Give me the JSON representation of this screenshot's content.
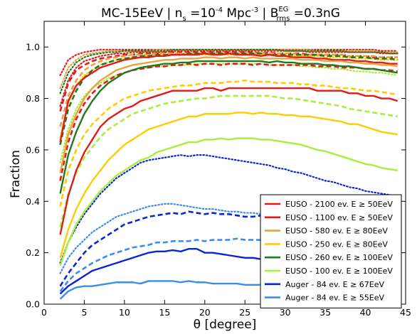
{
  "chart_data": {
    "type": "line",
    "title": {
      "main": "MC-15EeV | n",
      "sub_s": "s",
      "eq1": " =10",
      "sup_n": "-4",
      "unit": " Mpc",
      "sup_unit": "-3",
      "sep": "  | B",
      "sup_eg": "EG",
      "sub_rms": "rms",
      "val": " =0.3nG"
    },
    "xlabel": "θ [degree]",
    "ylabel": "Fraction",
    "xlim": [
      0,
      45
    ],
    "ylim": [
      0.0,
      1.1
    ],
    "x_ticks": [
      "0",
      "5",
      "10",
      "15",
      "20",
      "25",
      "30",
      "35",
      "40",
      "45"
    ],
    "y_ticks": [
      "0.0",
      "0.2",
      "0.4",
      "0.6",
      "0.8",
      "1.0"
    ],
    "grid": false,
    "legend_position": "lower-right",
    "x": [
      2,
      3,
      4,
      5,
      6,
      7,
      8,
      9,
      10,
      11,
      12,
      13,
      14,
      15,
      16,
      17,
      18,
      19,
      20,
      21,
      22,
      23,
      24,
      25,
      26,
      27,
      28,
      29,
      30,
      31,
      32,
      33,
      34,
      35,
      36,
      37,
      38,
      39,
      40,
      41,
      42,
      43,
      44
    ],
    "series": [
      {
        "name": "EUSO - 2100 ev. E  ≥ 50EeV",
        "color": "#e31a1c",
        "solid": [
          0.63,
          0.79,
          0.85,
          0.88,
          0.9,
          0.92,
          0.93,
          0.94,
          0.95,
          0.955,
          0.96,
          0.96,
          0.965,
          0.965,
          0.97,
          0.97,
          0.97,
          0.97,
          0.975,
          0.97,
          0.97,
          0.975,
          0.97,
          0.97,
          0.97,
          0.965,
          0.97,
          0.965,
          0.965,
          0.96,
          0.96,
          0.96,
          0.955,
          0.955,
          0.95,
          0.95,
          0.95,
          0.945,
          0.945,
          0.94,
          0.94,
          0.935,
          0.935
        ],
        "dashed": [
          0.75,
          0.86,
          0.91,
          0.93,
          0.945,
          0.955,
          0.96,
          0.965,
          0.97,
          0.97,
          0.975,
          0.975,
          0.975,
          0.98,
          0.98,
          0.98,
          0.98,
          0.98,
          0.98,
          0.98,
          0.98,
          0.98,
          0.98,
          0.98,
          0.98,
          0.975,
          0.98,
          0.975,
          0.975,
          0.975,
          0.975,
          0.97,
          0.97,
          0.97,
          0.97,
          0.97,
          0.965,
          0.965,
          0.965,
          0.96,
          0.96,
          0.96,
          0.96
        ],
        "dotted": [
          0.89,
          0.95,
          0.97,
          0.98,
          0.985,
          0.99,
          0.99,
          0.99,
          0.99,
          0.99,
          0.99,
          0.99,
          0.99,
          0.99,
          0.99,
          0.99,
          0.99,
          0.99,
          0.99,
          0.99,
          0.99,
          0.99,
          0.99,
          0.99,
          0.99,
          0.99,
          0.99,
          0.99,
          0.99,
          0.99,
          0.99,
          0.99,
          0.99,
          0.99,
          0.99,
          0.99,
          0.99,
          0.99,
          0.99,
          0.99,
          0.985,
          0.985,
          0.985
        ]
      },
      {
        "name": "EUSO - 1100 ev. E  ≥ 50EeV",
        "color": "#e31a1c",
        "solid": [
          0.27,
          0.42,
          0.52,
          0.59,
          0.64,
          0.69,
          0.72,
          0.74,
          0.76,
          0.77,
          0.79,
          0.8,
          0.81,
          0.82,
          0.83,
          0.83,
          0.83,
          0.83,
          0.84,
          0.84,
          0.83,
          0.84,
          0.84,
          0.84,
          0.84,
          0.84,
          0.84,
          0.84,
          0.84,
          0.84,
          0.84,
          0.84,
          0.83,
          0.83,
          0.83,
          0.83,
          0.82,
          0.82,
          0.81,
          0.81,
          0.8,
          0.8,
          0.79
        ],
        "dashed": [
          0.48,
          0.63,
          0.72,
          0.78,
          0.82,
          0.85,
          0.87,
          0.89,
          0.9,
          0.91,
          0.915,
          0.92,
          0.925,
          0.925,
          0.93,
          0.93,
          0.935,
          0.93,
          0.935,
          0.935,
          0.93,
          0.935,
          0.935,
          0.935,
          0.93,
          0.935,
          0.93,
          0.93,
          0.93,
          0.93,
          0.93,
          0.93,
          0.925,
          0.925,
          0.925,
          0.92,
          0.92,
          0.92,
          0.915,
          0.915,
          0.91,
          0.91,
          0.905
        ],
        "dotted": [
          0.77,
          0.87,
          0.92,
          0.945,
          0.955,
          0.965,
          0.97,
          0.975,
          0.975,
          0.98,
          0.98,
          0.98,
          0.98,
          0.98,
          0.985,
          0.985,
          0.985,
          0.985,
          0.985,
          0.985,
          0.985,
          0.985,
          0.985,
          0.985,
          0.985,
          0.985,
          0.985,
          0.985,
          0.985,
          0.985,
          0.985,
          0.98,
          0.98,
          0.98,
          0.98,
          0.98,
          0.98,
          0.98,
          0.98,
          0.98,
          0.975,
          0.975,
          0.975
        ]
      },
      {
        "name": "EUSO - 580 ev. E  ≥ 80EeV",
        "color": "#e8a33c",
        "solid": [
          0.51,
          0.66,
          0.74,
          0.8,
          0.84,
          0.87,
          0.89,
          0.91,
          0.92,
          0.93,
          0.935,
          0.94,
          0.945,
          0.95,
          0.95,
          0.955,
          0.955,
          0.955,
          0.96,
          0.96,
          0.955,
          0.96,
          0.96,
          0.955,
          0.96,
          0.955,
          0.955,
          0.955,
          0.955,
          0.955,
          0.95,
          0.95,
          0.95,
          0.945,
          0.945,
          0.945,
          0.94,
          0.94,
          0.935,
          0.935,
          0.93,
          0.93,
          0.925
        ],
        "dashed": [
          0.69,
          0.81,
          0.87,
          0.91,
          0.93,
          0.945,
          0.955,
          0.96,
          0.965,
          0.97,
          0.97,
          0.97,
          0.975,
          0.975,
          0.975,
          0.975,
          0.975,
          0.975,
          0.975,
          0.975,
          0.975,
          0.975,
          0.975,
          0.975,
          0.975,
          0.975,
          0.975,
          0.975,
          0.975,
          0.975,
          0.97,
          0.97,
          0.97,
          0.97,
          0.97,
          0.97,
          0.965,
          0.965,
          0.965,
          0.965,
          0.96,
          0.96,
          0.96
        ],
        "dotted": [
          0.84,
          0.92,
          0.95,
          0.97,
          0.975,
          0.98,
          0.985,
          0.985,
          0.985,
          0.985,
          0.985,
          0.985,
          0.99,
          0.99,
          0.99,
          0.99,
          0.99,
          0.99,
          0.99,
          0.99,
          0.99,
          0.99,
          0.99,
          0.99,
          0.99,
          0.99,
          0.99,
          0.99,
          0.99,
          0.99,
          0.99,
          0.99,
          0.985,
          0.985,
          0.985,
          0.985,
          0.985,
          0.985,
          0.985,
          0.985,
          0.98,
          0.98,
          0.98
        ]
      },
      {
        "name": "EUSO - 250 ev. E  ≥ 80EeV",
        "color": "#ffcc00",
        "solid": [
          0.18,
          0.29,
          0.37,
          0.43,
          0.48,
          0.52,
          0.56,
          0.59,
          0.62,
          0.64,
          0.66,
          0.68,
          0.69,
          0.7,
          0.71,
          0.72,
          0.73,
          0.73,
          0.74,
          0.74,
          0.74,
          0.74,
          0.745,
          0.745,
          0.74,
          0.745,
          0.74,
          0.74,
          0.735,
          0.735,
          0.73,
          0.73,
          0.725,
          0.72,
          0.715,
          0.71,
          0.7,
          0.7,
          0.69,
          0.68,
          0.67,
          0.665,
          0.66
        ],
        "dashed": [
          0.38,
          0.52,
          0.6,
          0.66,
          0.7,
          0.73,
          0.76,
          0.78,
          0.8,
          0.81,
          0.82,
          0.83,
          0.835,
          0.84,
          0.845,
          0.85,
          0.85,
          0.855,
          0.86,
          0.86,
          0.86,
          0.865,
          0.865,
          0.87,
          0.865,
          0.865,
          0.865,
          0.86,
          0.86,
          0.86,
          0.855,
          0.855,
          0.85,
          0.85,
          0.845,
          0.84,
          0.84,
          0.835,
          0.83,
          0.83,
          0.825,
          0.82,
          0.815
        ],
        "dotted": [
          0.65,
          0.78,
          0.85,
          0.89,
          0.91,
          0.93,
          0.94,
          0.95,
          0.955,
          0.96,
          0.96,
          0.965,
          0.965,
          0.97,
          0.97,
          0.97,
          0.97,
          0.97,
          0.97,
          0.97,
          0.97,
          0.97,
          0.97,
          0.97,
          0.97,
          0.97,
          0.97,
          0.97,
          0.97,
          0.965,
          0.965,
          0.965,
          0.965,
          0.96,
          0.96,
          0.96,
          0.96,
          0.955,
          0.955,
          0.955,
          0.95,
          0.95,
          0.95
        ]
      },
      {
        "name": "EUSO - 260 ev. E  ≥ 100EeV",
        "color": "#1e7b1e",
        "solid": [
          0.43,
          0.58,
          0.67,
          0.74,
          0.79,
          0.83,
          0.86,
          0.88,
          0.9,
          0.91,
          0.92,
          0.925,
          0.93,
          0.935,
          0.935,
          0.94,
          0.94,
          0.945,
          0.945,
          0.945,
          0.945,
          0.945,
          0.945,
          0.945,
          0.945,
          0.945,
          0.94,
          0.945,
          0.94,
          0.94,
          0.935,
          0.935,
          0.935,
          0.93,
          0.93,
          0.925,
          0.925,
          0.92,
          0.915,
          0.915,
          0.91,
          0.905,
          0.9
        ],
        "dashed": [
          0.62,
          0.76,
          0.83,
          0.88,
          0.91,
          0.93,
          0.94,
          0.95,
          0.955,
          0.96,
          0.965,
          0.965,
          0.97,
          0.97,
          0.97,
          0.97,
          0.975,
          0.975,
          0.975,
          0.975,
          0.975,
          0.975,
          0.975,
          0.975,
          0.975,
          0.975,
          0.97,
          0.97,
          0.97,
          0.97,
          0.97,
          0.97,
          0.97,
          0.965,
          0.965,
          0.965,
          0.96,
          0.96,
          0.96,
          0.955,
          0.955,
          0.955,
          0.95
        ],
        "dotted": [
          0.82,
          0.9,
          0.94,
          0.96,
          0.97,
          0.975,
          0.98,
          0.98,
          0.985,
          0.985,
          0.985,
          0.985,
          0.985,
          0.985,
          0.99,
          0.99,
          0.99,
          0.99,
          0.99,
          0.99,
          0.99,
          0.99,
          0.99,
          0.99,
          0.99,
          0.99,
          0.99,
          0.99,
          0.985,
          0.985,
          0.985,
          0.985,
          0.985,
          0.985,
          0.985,
          0.985,
          0.98,
          0.98,
          0.98,
          0.98,
          0.98,
          0.975,
          0.975
        ]
      },
      {
        "name": "EUSO - 100 ev. E  ≥ 100EeV",
        "color": "#a6f03c",
        "solid": [
          0.15,
          0.24,
          0.31,
          0.36,
          0.4,
          0.44,
          0.47,
          0.5,
          0.52,
          0.54,
          0.56,
          0.57,
          0.59,
          0.6,
          0.61,
          0.62,
          0.63,
          0.63,
          0.64,
          0.64,
          0.645,
          0.64,
          0.645,
          0.645,
          0.645,
          0.64,
          0.64,
          0.635,
          0.63,
          0.625,
          0.62,
          0.61,
          0.6,
          0.595,
          0.585,
          0.575,
          0.565,
          0.555,
          0.545,
          0.54,
          0.53,
          0.525,
          0.52
        ],
        "dashed": [
          0.3,
          0.43,
          0.51,
          0.57,
          0.61,
          0.65,
          0.68,
          0.7,
          0.72,
          0.74,
          0.75,
          0.76,
          0.77,
          0.78,
          0.785,
          0.79,
          0.795,
          0.8,
          0.8,
          0.805,
          0.81,
          0.81,
          0.81,
          0.81,
          0.81,
          0.81,
          0.81,
          0.805,
          0.8,
          0.8,
          0.795,
          0.79,
          0.785,
          0.78,
          0.775,
          0.77,
          0.76,
          0.755,
          0.75,
          0.745,
          0.74,
          0.735,
          0.73
        ],
        "dotted": [
          0.55,
          0.68,
          0.76,
          0.81,
          0.84,
          0.86,
          0.88,
          0.89,
          0.9,
          0.91,
          0.915,
          0.92,
          0.925,
          0.925,
          0.93,
          0.93,
          0.93,
          0.935,
          0.935,
          0.935,
          0.935,
          0.935,
          0.935,
          0.935,
          0.935,
          0.935,
          0.93,
          0.93,
          0.93,
          0.93,
          0.925,
          0.925,
          0.92,
          0.92,
          0.915,
          0.915,
          0.91,
          0.905,
          0.905,
          0.9,
          0.9,
          0.895,
          0.89
        ]
      },
      {
        "name": "Auger - 84 ev. E  ≥ 67EeV",
        "color": "#0a24d6",
        "solid": [
          0.04,
          0.07,
          0.09,
          0.11,
          0.13,
          0.14,
          0.15,
          0.16,
          0.17,
          0.18,
          0.19,
          0.2,
          0.205,
          0.205,
          0.21,
          0.205,
          0.215,
          0.215,
          0.2,
          0.2,
          0.195,
          0.19,
          0.185,
          0.18,
          0.18,
          0.175,
          0.17,
          0.17,
          0.165,
          0.165,
          0.16,
          0.16,
          0.155,
          0.155,
          0.15,
          0.15,
          0.145,
          0.145,
          0.14,
          0.14,
          0.135,
          0.135,
          0.13
        ],
        "dashed": [
          0.07,
          0.12,
          0.16,
          0.2,
          0.23,
          0.25,
          0.27,
          0.29,
          0.31,
          0.32,
          0.33,
          0.34,
          0.345,
          0.35,
          0.355,
          0.35,
          0.36,
          0.355,
          0.35,
          0.355,
          0.35,
          0.35,
          0.345,
          0.34,
          0.34,
          0.345,
          0.34,
          0.335,
          0.33,
          0.33,
          0.325,
          0.32,
          0.315,
          0.31,
          0.305,
          0.3,
          0.295,
          0.29,
          0.285,
          0.28,
          0.275,
          0.27,
          0.265
        ],
        "dotted": [
          0.16,
          0.24,
          0.3,
          0.35,
          0.39,
          0.43,
          0.46,
          0.49,
          0.51,
          0.53,
          0.55,
          0.56,
          0.565,
          0.57,
          0.575,
          0.58,
          0.575,
          0.58,
          0.58,
          0.575,
          0.57,
          0.565,
          0.56,
          0.555,
          0.55,
          0.545,
          0.54,
          0.53,
          0.525,
          0.515,
          0.51,
          0.5,
          0.49,
          0.48,
          0.475,
          0.465,
          0.455,
          0.45,
          0.44,
          0.435,
          0.43,
          0.425,
          0.42
        ]
      },
      {
        "name": "Auger - 84 ev. E  ≥ 55EeV",
        "color": "#3a8ee6",
        "solid": [
          0.02,
          0.05,
          0.065,
          0.07,
          0.07,
          0.075,
          0.08,
          0.085,
          0.085,
          0.085,
          0.08,
          0.09,
          0.09,
          0.09,
          0.09,
          0.085,
          0.09,
          0.085,
          0.085,
          0.08,
          0.08,
          0.08,
          0.08,
          0.075,
          0.075,
          0.075,
          0.075,
          0.075,
          0.07,
          0.07,
          0.07,
          0.07,
          0.065,
          0.065,
          0.065,
          0.065,
          0.06,
          0.06,
          0.06,
          0.06,
          0.055,
          0.055,
          0.055
        ],
        "dashed": [
          0.05,
          0.09,
          0.12,
          0.14,
          0.16,
          0.175,
          0.19,
          0.2,
          0.21,
          0.22,
          0.225,
          0.23,
          0.24,
          0.24,
          0.245,
          0.245,
          0.245,
          0.25,
          0.245,
          0.25,
          0.25,
          0.25,
          0.255,
          0.25,
          0.25,
          0.25,
          0.245,
          0.245,
          0.24,
          0.24,
          0.235,
          0.235,
          0.23,
          0.225,
          0.22,
          0.22,
          0.215,
          0.21,
          0.205,
          0.2,
          0.2,
          0.195,
          0.19
        ],
        "dotted": [
          0.12,
          0.18,
          0.22,
          0.25,
          0.28,
          0.3,
          0.32,
          0.34,
          0.35,
          0.36,
          0.37,
          0.38,
          0.385,
          0.39,
          0.39,
          0.385,
          0.38,
          0.375,
          0.37,
          0.37,
          0.365,
          0.36,
          0.36,
          0.355,
          0.355,
          0.35,
          0.345,
          0.34,
          0.335,
          0.33,
          0.325,
          0.32,
          0.315,
          0.31,
          0.3,
          0.295,
          0.29,
          0.285,
          0.28,
          0.275,
          0.27,
          0.265,
          0.26
        ]
      }
    ]
  }
}
